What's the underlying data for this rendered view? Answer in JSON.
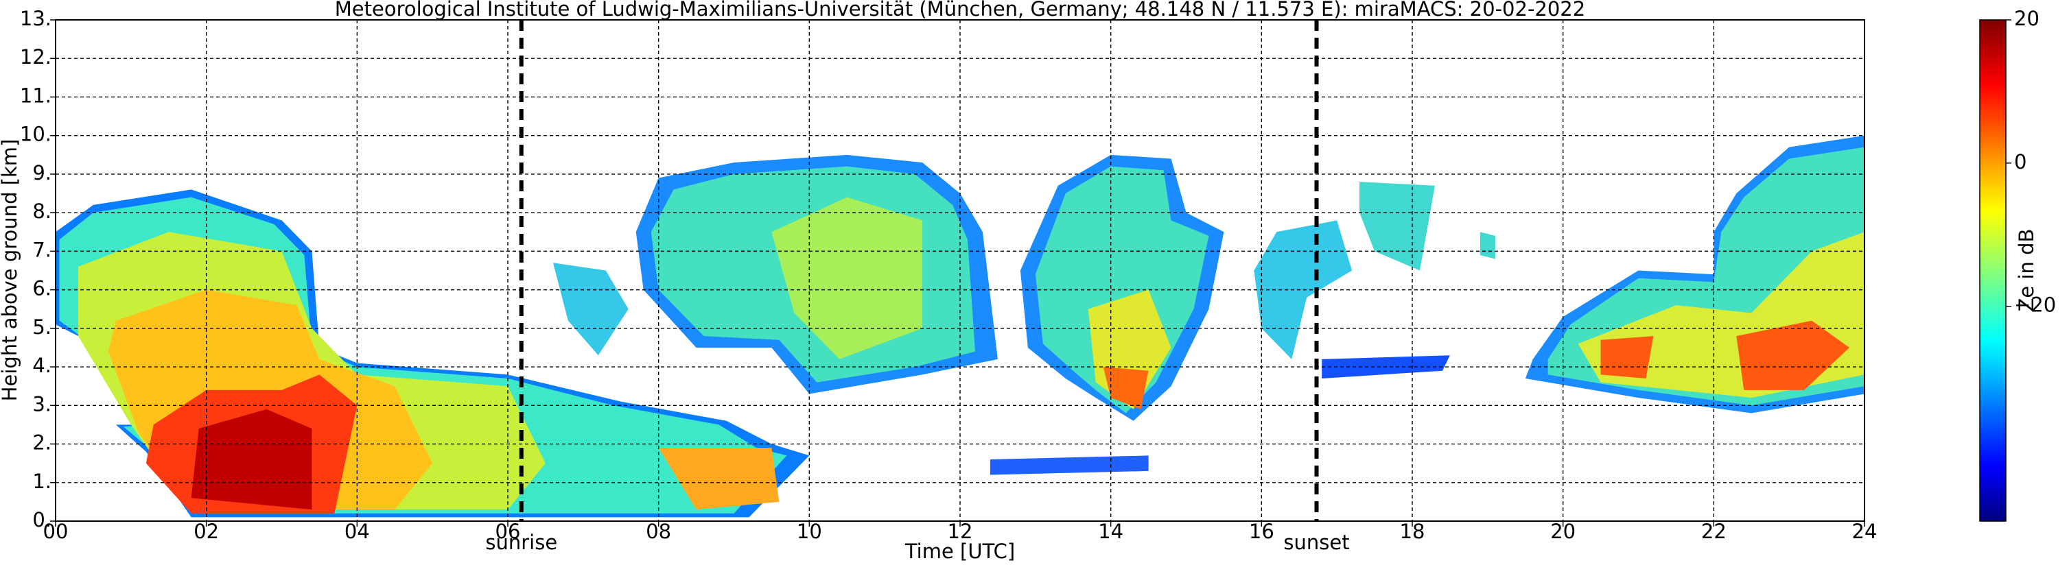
{
  "chart_data": {
    "type": "heatmap",
    "title": "Meteorological Institute of Ludwig-Maximilians-Universität (München, Germany; 48.148 N / 11.573 E):    miraMACS: 20-02-2022",
    "x_label": "Time [UTC]",
    "y_label": "Height above ground [km]",
    "xlim": [
      0,
      24
    ],
    "xticks": [
      {
        "value": 0,
        "label": "00"
      },
      {
        "value": 2,
        "label": "02"
      },
      {
        "value": 4,
        "label": "04"
      },
      {
        "value": 6,
        "label": "06"
      },
      {
        "value": 8,
        "label": "08"
      },
      10,
      12,
      14,
      16,
      18,
      20,
      22,
      24
    ],
    "ylim": [
      0,
      13
    ],
    "yticks": [
      {
        "value": 0,
        "label": "0."
      },
      {
        "value": 1,
        "label": "1."
      },
      {
        "value": 2,
        "label": "2."
      },
      {
        "value": 3,
        "label": "3."
      },
      {
        "value": 4,
        "label": "4."
      },
      {
        "value": 5,
        "label": "5."
      },
      {
        "value": 6,
        "label": "6."
      },
      {
        "value": 7,
        "label": "7."
      },
      {
        "value": 8,
        "label": "8."
      },
      {
        "value": 9,
        "label": "9."
      },
      {
        "value": 10,
        "label": "10."
      },
      {
        "value": 11,
        "label": "11."
      },
      {
        "value": 12,
        "label": "12."
      },
      {
        "value": 13,
        "label": "13."
      }
    ],
    "grid": true,
    "annotations": [
      {
        "text": "sunrise",
        "x": 6.18
      },
      {
        "text": "sunset",
        "x": 16.73
      }
    ],
    "colorbar": {
      "label": "Ze in dB",
      "colormap": "jet",
      "clim": [
        -50,
        20
      ],
      "ticks": [
        20,
        0,
        {
          "value": -20,
          "label": "−20"
        }
      ]
    }
  }
}
